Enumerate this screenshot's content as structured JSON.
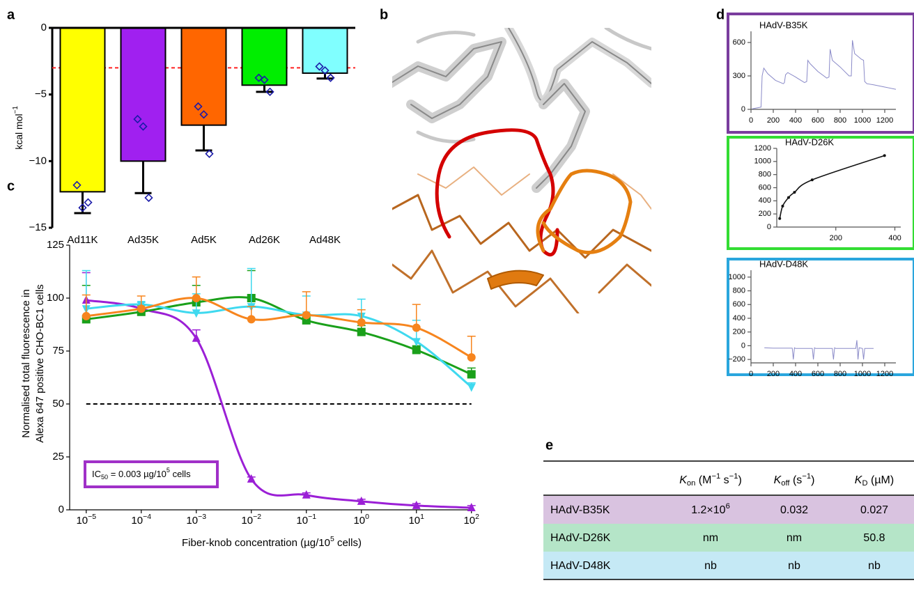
{
  "panel_labels": [
    "a",
    "b",
    "c",
    "d",
    "e"
  ],
  "chart_data": [
    {
      "type": "bar",
      "ylabel": "kcal mol",
      "ylabel_sup": "−1",
      "categories": [
        "Ad11K",
        "Ad35K",
        "Ad5K",
        "Ad26K",
        "Ad48K"
      ],
      "values": [
        -12.3,
        -10.0,
        -7.3,
        -4.3,
        -3.4
      ],
      "errors": [
        1.6,
        2.4,
        1.9,
        0.5,
        0.4
      ],
      "points": [
        [
          -11.8,
          -13.5,
          -13.1
        ],
        [
          -6.85,
          -7.4,
          -12.75
        ],
        [
          -5.9,
          -6.5,
          -9.45
        ],
        [
          -3.75,
          -3.9,
          -4.8
        ],
        [
          -2.9,
          -3.2,
          -3.75
        ]
      ],
      "colors": [
        "#ffff00",
        "#a020f0",
        "#ff6600",
        "#00ee00",
        "#80ffff"
      ],
      "point_color": "#1a1aa8",
      "reference_line": {
        "value": -3,
        "color": "#ff2020"
      },
      "ylim": [
        -15,
        0
      ],
      "yticks": [
        0,
        {
          "value": -5,
          "label": "−5"
        },
        {
          "value": -10,
          "label": "−10"
        },
        {
          "value": -15,
          "label": "−15"
        }
      ]
    },
    {
      "type": "line",
      "xscale": "log",
      "ylabel_lines": [
        "Normalised total fluorescence in",
        "Alexa 647 positive CHO-BC1 cells"
      ],
      "xlabel": [
        {
          "t": "Fiber-knob concentration (µg/10"
        },
        {
          "t": "5",
          "sup": true
        },
        {
          "t": " cells)"
        }
      ],
      "annotation": [
        {
          "t": "IC"
        },
        {
          "t": "50",
          "sub": true
        },
        {
          "t": " = 0.003 µg/10"
        },
        {
          "t": "5",
          "sup": true
        },
        {
          "t": " cells"
        }
      ],
      "annotation_color": "#a030c8",
      "reference_line": {
        "value": 50,
        "color": "#000000"
      },
      "x": [
        1e-05,
        0.0001,
        0.001,
        0.01,
        0.1,
        1,
        10,
        100
      ],
      "series": [
        {
          "color": "#9b1fd6",
          "marker": "triangle-up",
          "values": [
            99,
            95,
            81,
            14.5,
            7,
            4,
            2,
            1
          ],
          "errors": [
            13,
            2,
            4,
            1,
            1,
            1,
            1,
            1
          ]
        },
        {
          "color": "#1aa01a",
          "marker": "square",
          "values": [
            90,
            93.5,
            98,
            100,
            89.5,
            84,
            75.5,
            64
          ],
          "errors": [
            16,
            3,
            8,
            13,
            3,
            3,
            2,
            3
          ]
        },
        {
          "color": "#3fd9ef",
          "marker": "triangle-down",
          "values": [
            95,
            97,
            93,
            96,
            92,
            91.5,
            79.5,
            58
          ],
          "errors": [
            18,
            1,
            9,
            18,
            9,
            8,
            10,
            2
          ]
        },
        {
          "color": "#f7851e",
          "marker": "circle",
          "values": [
            91.5,
            95,
            100,
            90,
            92,
            88.5,
            86,
            72
          ],
          "errors": [
            10,
            6,
            10,
            6,
            11,
            6,
            11,
            10
          ]
        }
      ],
      "xlim": [
        5e-06,
        110
      ],
      "xticks": [
        {
          "value": 1e-05,
          "label": "10",
          "sup": "−5"
        },
        {
          "value": 0.0001,
          "label": "10",
          "sup": "−4"
        },
        {
          "value": 0.001,
          "label": "10",
          "sup": "−3"
        },
        {
          "value": 0.01,
          "label": "10",
          "sup": "−2"
        },
        {
          "value": 0.1,
          "label": "10",
          "sup": "−1"
        },
        {
          "value": 1,
          "label": "10",
          "sup": "0"
        },
        {
          "value": 10,
          "label": "10",
          "sup": "1"
        },
        {
          "value": 100,
          "label": "10",
          "sup": "2"
        }
      ],
      "ylim": [
        0,
        125
      ],
      "yticks": [
        0,
        25,
        50,
        75,
        100,
        125
      ]
    },
    {
      "type": "line",
      "title": "HAdV-B35K",
      "frame_color": "#7a3d9e",
      "color": "#8a8ac8",
      "x": [
        10,
        90,
        100,
        115,
        150,
        220,
        290,
        300,
        310,
        330,
        400,
        480,
        500,
        510,
        530,
        600,
        680,
        700,
        710,
        730,
        800,
        880,
        900,
        910,
        930,
        990,
        1010,
        1020,
        1040,
        1100,
        1200,
        1300
      ],
      "values": [
        5,
        20,
        300,
        370,
        320,
        260,
        230,
        240,
        310,
        330,
        290,
        240,
        250,
        440,
        410,
        340,
        280,
        290,
        540,
        440,
        380,
        300,
        300,
        620,
        500,
        450,
        440,
        250,
        230,
        220,
        200,
        180
      ],
      "xlim": [
        0,
        1300
      ],
      "xticks": [
        0,
        200,
        400,
        600,
        800,
        1000,
        1200
      ],
      "ylim": [
        0,
        700
      ],
      "yticks": [
        0,
        300,
        600
      ]
    },
    {
      "type": "scatter",
      "title": "HAdV-D26K",
      "frame_color": "#33dd33",
      "color": "#111111",
      "x": [
        10,
        20,
        40,
        60,
        120,
        365
      ],
      "values": [
        130,
        320,
        450,
        530,
        720,
        1090
      ],
      "xlim": [
        0,
        420
      ],
      "xticks": [
        200,
        400
      ],
      "ylim": [
        0,
        1200
      ],
      "yticks": [
        0,
        200,
        400,
        600,
        800,
        1000,
        1200
      ]
    },
    {
      "type": "line",
      "title": "HAdV-D48K",
      "frame_color": "#2aa6dd",
      "color": "#8a8ac8",
      "x": [
        120,
        200,
        370,
        380,
        390,
        400,
        550,
        560,
        570,
        580,
        730,
        740,
        750,
        760,
        940,
        950,
        960,
        970,
        1000,
        1010,
        1020,
        1100
      ],
      "values": [
        -30,
        -35,
        -35,
        -200,
        -30,
        -40,
        -40,
        -200,
        -30,
        -40,
        -40,
        -200,
        -30,
        -40,
        -40,
        80,
        -200,
        -30,
        -40,
        -200,
        -40,
        -40
      ],
      "xlim": [
        0,
        1300
      ],
      "xticks": [
        0,
        200,
        400,
        600,
        800,
        1000,
        1200
      ],
      "ylim": [
        -250,
        1100
      ],
      "yticks": [
        {
          "value": -200,
          "label": "−200"
        },
        0,
        200,
        400,
        600,
        800,
        1000
      ]
    }
  ],
  "table": {
    "columns": [
      [
        {
          "t": "K",
          "i": true
        },
        {
          "t": "on",
          "sub": true
        },
        {
          "t": " (M"
        },
        {
          "t": "−1",
          "sup": true
        },
        {
          "t": " s"
        },
        {
          "t": "−1",
          "sup": true
        },
        {
          "t": ")"
        }
      ],
      [
        {
          "t": "K",
          "i": true
        },
        {
          "t": "off",
          "sub": true
        },
        {
          "t": " (s"
        },
        {
          "t": "−1",
          "sup": true
        },
        {
          "t": ")"
        }
      ],
      [
        {
          "t": "K",
          "i": true
        },
        {
          "t": "D",
          "sub": true
        },
        {
          "t": " (µM)"
        }
      ]
    ],
    "rows": [
      [
        "HAdV-B35K",
        [
          {
            "t": "1.2×10"
          },
          {
            "t": "6",
            "sup": true
          }
        ],
        "0.032",
        "0.027"
      ],
      [
        "HAdV-D26K",
        "nm",
        "nm",
        "50.8"
      ],
      [
        "HAdV-D48K",
        "nb",
        "nb",
        "nb"
      ]
    ],
    "row_colors": [
      "#d9c3e0",
      "#b5e5c8",
      "#c5e9f5"
    ]
  }
}
